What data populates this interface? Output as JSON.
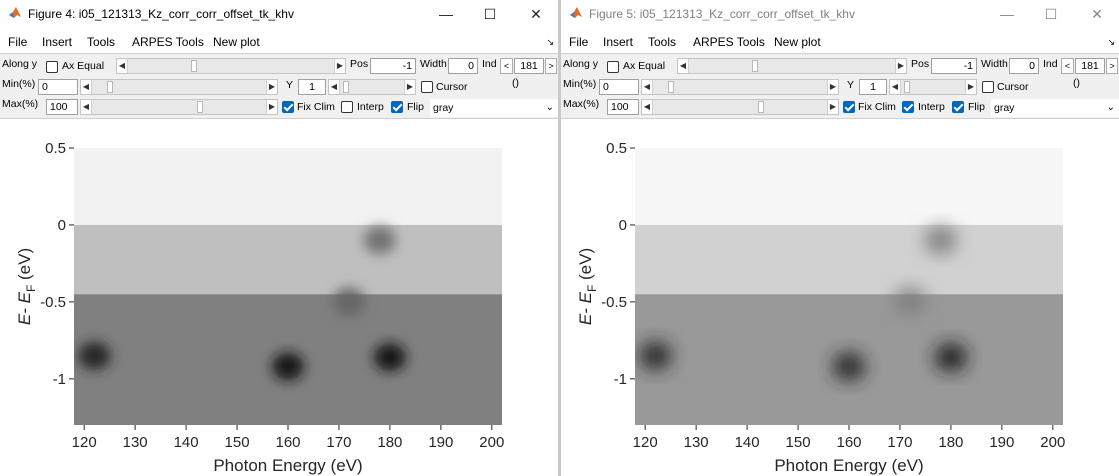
{
  "windows": [
    {
      "title": "Figure 4: i05_121313_Kz_corr_corr_offset_tk_khv",
      "menu": [
        "File",
        "Insert",
        "Tools",
        "ARPES Tools",
        "New plot"
      ],
      "controls": {
        "along_label": "Along y",
        "ax_equal_label": "Ax Equal",
        "pos_label": "Pos",
        "pos_value": "-1",
        "width_label": "Width",
        "width_value": "0",
        "ind_label": "Ind",
        "ind_prev": "<",
        "ind_value": "181",
        "ind_next": ">",
        "min_label": "Min(%)",
        "min_value": "0",
        "y_label": "Y",
        "y_value": "1",
        "cursor_label": "Cursor",
        "cursor_coords": "()",
        "max_label": "Max(%)",
        "max_value": "100",
        "fix_clim_label": "Fix Clim",
        "interp_label": "Interp",
        "flip_label": "Flip",
        "colormap_value": "gray",
        "ax_equal_checked": false,
        "cursor_checked": false,
        "fix_clim_checked": true,
        "interp_checked": false,
        "flip_checked": true
      }
    },
    {
      "title": "Figure 5: i05_121313_Kz_corr_corr_offset_tk_khv",
      "menu": [
        "File",
        "Insert",
        "Tools",
        "ARPES Tools",
        "New plot"
      ],
      "controls": {
        "along_label": "Along y",
        "ax_equal_label": "Ax Equal",
        "pos_label": "Pos",
        "pos_value": "-1",
        "width_label": "Width",
        "width_value": "0",
        "ind_label": "Ind",
        "ind_prev": "<",
        "ind_value": "181",
        "ind_next": ">",
        "min_label": "Min(%)",
        "min_value": "0",
        "y_label": "Y",
        "y_value": "1",
        "cursor_label": "Cursor",
        "cursor_coords": "()",
        "max_label": "Max(%)",
        "max_value": "100",
        "fix_clim_label": "Fix Clim",
        "interp_label": "Interp",
        "flip_label": "Flip",
        "colormap_value": "gray",
        "ax_equal_checked": false,
        "cursor_checked": false,
        "fix_clim_checked": true,
        "interp_checked": true,
        "flip_checked": true
      }
    }
  ],
  "chart_data": [
    {
      "type": "heatmap",
      "colormap": "gray (flipped)",
      "interpolated": false,
      "xlabel": "Photon Energy (eV)",
      "ylabel": "E- E_F (eV)",
      "xticks": [
        120,
        130,
        140,
        150,
        160,
        170,
        180,
        190,
        200
      ],
      "yticks": [
        0.5,
        0,
        -0.5,
        -1
      ],
      "xlim": [
        118,
        202
      ],
      "ylim": [
        -1.3,
        0.5
      ],
      "intensity_regions": [
        {
          "x_range": [
            118,
            202
          ],
          "y_range": [
            0,
            0.5
          ],
          "level": 0.05
        },
        {
          "x_range": [
            118,
            202
          ],
          "y_range": [
            -0.45,
            0
          ],
          "level": 0.25
        },
        {
          "x_range": [
            118,
            202
          ],
          "y_range": [
            -1.3,
            -0.45
          ],
          "level": 0.5
        },
        {
          "x": 122,
          "y": -0.85,
          "level": 0.85
        },
        {
          "x": 160,
          "y": -0.92,
          "level": 0.9
        },
        {
          "x": 180,
          "y": -0.86,
          "level": 0.9
        },
        {
          "x": 178,
          "y": -0.1,
          "level": 0.55
        },
        {
          "x": 172,
          "y": -0.5,
          "level": 0.6
        }
      ]
    },
    {
      "type": "heatmap",
      "colormap": "gray (flipped)",
      "interpolated": true,
      "xlabel": "Photon Energy (eV)",
      "ylabel": "E- E_F (eV)",
      "xticks": [
        120,
        130,
        140,
        150,
        160,
        170,
        180,
        190,
        200
      ],
      "yticks": [
        0.5,
        0,
        -0.5,
        -1
      ],
      "xlim": [
        118,
        202
      ],
      "ylim": [
        -1.3,
        0.5
      ],
      "intensity_regions": [
        {
          "x_range": [
            118,
            202
          ],
          "y_range": [
            0,
            0.5
          ],
          "level": 0.03
        },
        {
          "x_range": [
            118,
            202
          ],
          "y_range": [
            -0.45,
            0
          ],
          "level": 0.18
        },
        {
          "x_range": [
            118,
            202
          ],
          "y_range": [
            -1.3,
            -0.45
          ],
          "level": 0.4
        },
        {
          "x": 122,
          "y": -0.85,
          "level": 0.85
        },
        {
          "x": 160,
          "y": -0.92,
          "level": 0.85
        },
        {
          "x": 180,
          "y": -0.86,
          "level": 0.88
        },
        {
          "x": 178,
          "y": -0.1,
          "level": 0.5
        },
        {
          "x": 172,
          "y": -0.5,
          "level": 0.5
        }
      ]
    }
  ]
}
